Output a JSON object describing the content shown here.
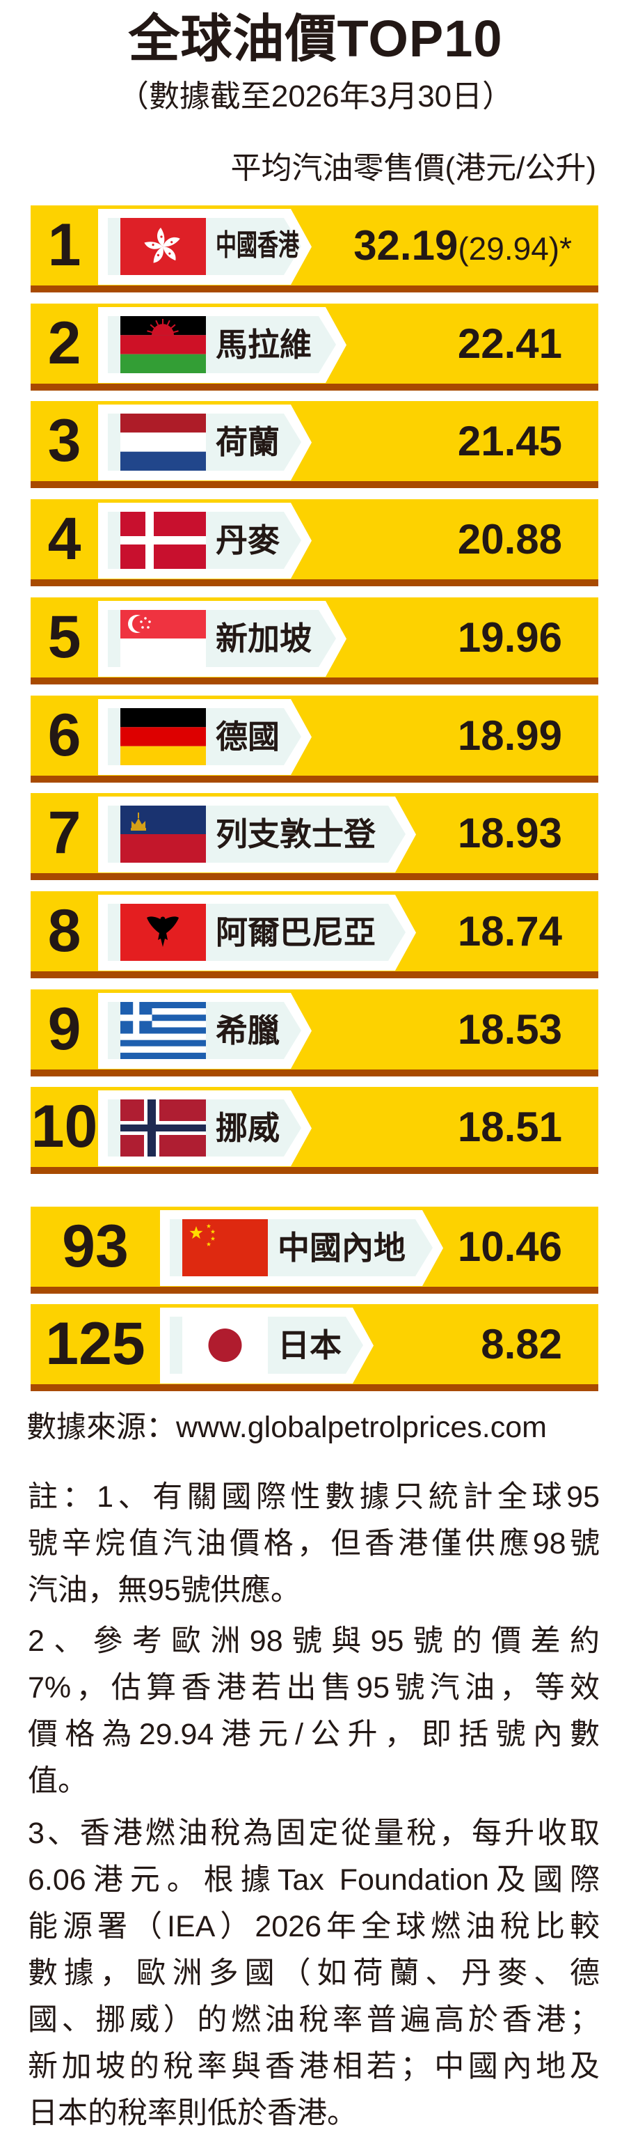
{
  "header": {
    "title": "全球油價TOP10",
    "subtitle": "（數據截至2026年3月30日）",
    "unit_label": "平均汽油零售價(港元/公升)"
  },
  "colors": {
    "bar": "#FDD200",
    "bar_shadow": "#A84A00",
    "tab_panel": "#EAF5F3",
    "text": "#231815"
  },
  "rankings": [
    {
      "rank": "1",
      "country": "中國香港",
      "price": "32.19",
      "alt_price": "(29.94)*",
      "flag_icon": "hong-kong-flag-icon"
    },
    {
      "rank": "2",
      "country": "馬拉維",
      "price": "22.41",
      "flag_icon": "malawi-flag-icon"
    },
    {
      "rank": "3",
      "country": "荷蘭",
      "price": "21.45",
      "flag_icon": "netherlands-flag-icon"
    },
    {
      "rank": "4",
      "country": "丹麥",
      "price": "20.88",
      "flag_icon": "denmark-flag-icon"
    },
    {
      "rank": "5",
      "country": "新加坡",
      "price": "19.96",
      "flag_icon": "singapore-flag-icon"
    },
    {
      "rank": "6",
      "country": "德國",
      "price": "18.99",
      "flag_icon": "germany-flag-icon"
    },
    {
      "rank": "7",
      "country": "列支敦士登",
      "price": "18.93",
      "flag_icon": "liechtenstein-flag-icon"
    },
    {
      "rank": "8",
      "country": "阿爾巴尼亞",
      "price": "18.74",
      "flag_icon": "albania-flag-icon"
    },
    {
      "rank": "9",
      "country": "希臘",
      "price": "18.53",
      "flag_icon": "greece-flag-icon"
    },
    {
      "rank": "10",
      "country": "挪威",
      "price": "18.51",
      "flag_icon": "norway-flag-icon"
    }
  ],
  "others": [
    {
      "rank": "93",
      "country": "中國內地",
      "price": "10.46",
      "flag_icon": "china-flag-icon"
    },
    {
      "rank": "125",
      "country": "日本",
      "price": "8.82",
      "flag_icon": "japan-flag-icon"
    }
  ],
  "source": "數據來源：www.globalpetrolprices.com",
  "notes": [
    [
      "註：1、有關國際性數據只統計全球95",
      "號辛烷值汽油價格，但香港僅供應98號",
      "汽油，無95號供應。"
    ],
    [
      "2、參考歐洲98號與95號的價差約",
      "7%，估算香港若出售95號汽油，等效",
      "價格為29.94港元/公升，即括號內數",
      "值。"
    ],
    [
      "3、香港燃油稅為固定從量稅，每升收取",
      "6.06港元。根據Tax Foundation及國際",
      "能源署（IEA）2026年全球燃油稅比較",
      "數據，歐洲多國（如荷蘭、丹麥、德",
      "國、挪威）的燃油稅率普遍高於香港；",
      "新加坡的稅率與香港相若；中國內地及",
      "日本的稅率則低於香港。"
    ]
  ]
}
